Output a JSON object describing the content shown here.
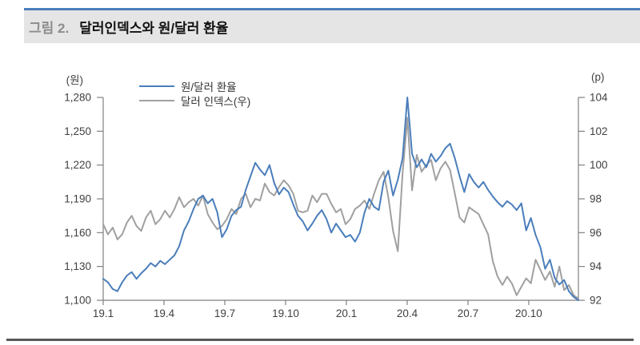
{
  "header": {
    "figure_label": "그림 2.",
    "title": "달러인덱스와 원/달러 환율"
  },
  "colors": {
    "accent_blue": "#4a7ebb",
    "series_gray": "#a0a0a0",
    "header_bg": "#e5e5e5",
    "axis_line": "#808080",
    "tick_text": "#404040",
    "footer_divider": "#595959"
  },
  "chart_data": {
    "type": "line",
    "title": "달러인덱스와 원/달러 환율",
    "legend_position": "top-left",
    "grid": false,
    "x_axis": {
      "tick_labels": [
        "19.1",
        "19.4",
        "19.7",
        "19.10",
        "20.1",
        "20.4",
        "20.7",
        "20.10"
      ],
      "tick_month_offsets": [
        0,
        3,
        6,
        9,
        12,
        15,
        18,
        21
      ],
      "total_months": 23.45
    },
    "left_axis": {
      "unit": "(원)",
      "min": 1100,
      "max": 1280,
      "ticks": [
        1100,
        1130,
        1160,
        1190,
        1220,
        1250,
        1280
      ]
    },
    "right_axis": {
      "unit": "(p)",
      "min": 92,
      "max": 104,
      "ticks": [
        92,
        94,
        96,
        98,
        100,
        102,
        104
      ]
    },
    "series": [
      {
        "name": "원/달러 환율",
        "axis": "left",
        "color": "#4a7ebb",
        "values": [
          1119,
          1116,
          1110,
          1108,
          1116,
          1122,
          1125,
          1119,
          1124,
          1128,
          1133,
          1130,
          1135,
          1132,
          1136,
          1140,
          1148,
          1162,
          1170,
          1181,
          1190,
          1193,
          1186,
          1190,
          1178,
          1156,
          1163,
          1175,
          1180,
          1183,
          1198,
          1210,
          1222,
          1216,
          1211,
          1220,
          1204,
          1194,
          1200,
          1196,
          1185,
          1175,
          1170,
          1162,
          1168,
          1175,
          1180,
          1172,
          1160,
          1168,
          1162,
          1156,
          1158,
          1152,
          1160,
          1178,
          1190,
          1183,
          1180,
          1205,
          1215,
          1193,
          1207,
          1226,
          1280,
          1230,
          1218,
          1225,
          1218,
          1230,
          1223,
          1228,
          1235,
          1239,
          1226,
          1210,
          1196,
          1212,
          1205,
          1200,
          1205,
          1198,
          1192,
          1187,
          1183,
          1188,
          1185,
          1180,
          1186,
          1162,
          1173,
          1158,
          1147,
          1128,
          1136,
          1120,
          1114,
          1118,
          1108,
          1103,
          1100
        ]
      },
      {
        "name": "달러 인덱스(우)",
        "axis": "right",
        "color": "#a0a0a0",
        "values": [
          96.5,
          95.9,
          96.3,
          95.6,
          95.9,
          96.6,
          97.0,
          96.4,
          96.1,
          96.9,
          97.3,
          96.5,
          96.8,
          97.3,
          96.9,
          97.4,
          98.1,
          97.5,
          97.8,
          98.0,
          97.6,
          98.2,
          97.1,
          96.6,
          96.2,
          96.4,
          96.8,
          97.4,
          97.1,
          98.0,
          98.3,
          97.5,
          98.0,
          97.9,
          98.9,
          98.4,
          98.2,
          98.7,
          99.1,
          98.8,
          98.3,
          97.3,
          97.2,
          97.3,
          98.2,
          97.8,
          98.3,
          98.3,
          97.7,
          97.2,
          97.4,
          96.5,
          96.8,
          97.4,
          97.6,
          97.9,
          97.4,
          98.3,
          99.1,
          99.6,
          98.1,
          96.1,
          94.9,
          99.5,
          102.8,
          98.5,
          100.6,
          99.6,
          100.0,
          100.3,
          99.1,
          99.8,
          100.2,
          99.7,
          98.3,
          96.9,
          96.6,
          97.5,
          97.3,
          97.1,
          96.5,
          95.9,
          94.3,
          93.4,
          92.9,
          93.4,
          93.0,
          92.3,
          92.8,
          93.3,
          93.0,
          94.4,
          93.8,
          93.2,
          93.7,
          92.8,
          94.0,
          92.6,
          92.9,
          92.3,
          92.1
        ]
      }
    ]
  }
}
